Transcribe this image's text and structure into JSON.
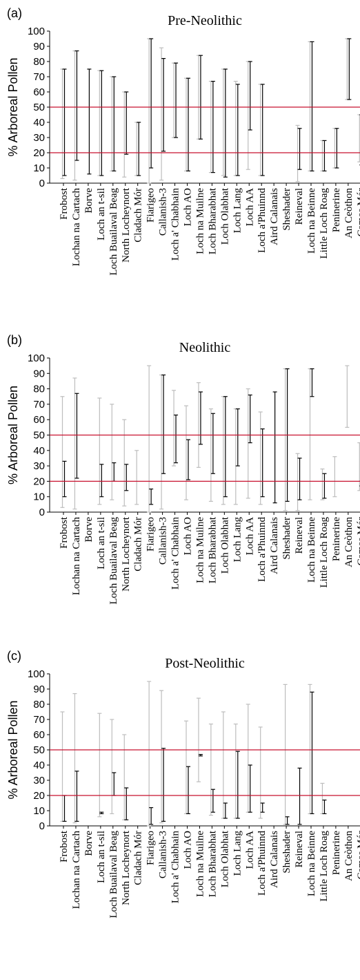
{
  "chart_data": [
    {
      "type": "range",
      "panel_label": "(a)",
      "title": "Pre-Neolithic",
      "ylabel": "% Arboreal Pollen",
      "ylim": [
        0,
        100
      ],
      "yticks": [
        0,
        10,
        20,
        30,
        40,
        50,
        60,
        70,
        80,
        90,
        100
      ],
      "reference_lines": [
        20,
        50
      ],
      "categories": [
        "Frobost",
        "Lochan na Cartach",
        "Borve",
        "Loch an t-sil",
        "Loch Buailaval Beag",
        "North Locheynort",
        "Cladach Mór",
        "Fiarigeo",
        "Callanish-3",
        "Loch a' Chabhain",
        "Loch AO",
        "Loch na Muilne",
        "Loch Bharabhat",
        "Loch Olabhat",
        "Loch Lang",
        "Loch AA",
        "Loch a'Phuinnd",
        "Aird Calanais",
        "Sheshader",
        "Reineval",
        "Loch na Beinne",
        "Little  Loch Roag",
        "Peninerine",
        "An Ceòthon",
        "Camas Mór"
      ],
      "series": [
        {
          "values": [
            [
              3,
              75
            ],
            [
              2,
              87
            ],
            null,
            [
              5,
              74
            ],
            [
              8,
              70
            ],
            [
              4,
              60
            ],
            [
              5,
              40
            ],
            [
              0,
              95
            ],
            [
              2,
              89
            ],
            [
              30,
              79
            ],
            [
              8,
              69
            ],
            [
              29,
              84
            ],
            [
              7,
              67
            ],
            [
              5,
              75
            ],
            [
              5,
              67
            ],
            [
              9,
              80
            ],
            [
              5,
              65
            ],
            null,
            null,
            [
              1,
              38
            ],
            [
              8,
              93
            ],
            [
              8,
              28
            ],
            [
              10,
              36
            ],
            [
              55,
              95
            ],
            [
              14,
              45
            ]
          ],
          "style": "context"
        },
        {
          "values": [
            [
              5,
              75
            ],
            [
              15,
              87
            ],
            [
              6,
              75
            ],
            [
              5,
              74
            ],
            [
              8,
              70
            ],
            [
              19,
              60
            ],
            [
              5,
              40
            ],
            [
              10,
              95
            ],
            [
              21,
              82
            ],
            [
              30,
              79
            ],
            [
              8,
              69
            ],
            [
              29,
              84
            ],
            [
              7,
              67
            ],
            [
              4,
              75
            ],
            [
              5,
              65
            ],
            [
              35,
              80
            ],
            [
              5,
              65
            ],
            null,
            null,
            [
              9,
              36
            ],
            [
              8,
              93
            ],
            [
              8,
              28
            ],
            [
              10,
              36
            ],
            [
              55,
              95
            ],
            [
              12,
              45
            ]
          ],
          "style": "period"
        }
      ]
    },
    {
      "type": "range",
      "panel_label": "(b)",
      "title": "Neolithic",
      "ylabel": "% Arboreal Pollen",
      "ylim": [
        0,
        100
      ],
      "yticks": [
        0,
        10,
        20,
        30,
        40,
        50,
        60,
        70,
        80,
        90,
        100
      ],
      "reference_lines": [
        20,
        50
      ],
      "categories": [
        "Frobost",
        "Lochan na Cartach",
        "Borve",
        "Loch an t-sil",
        "Loch Buailaval Beag",
        "North Locheynort",
        "Cladach Mór",
        "Fiarigeo",
        "Callanish-3",
        "Loch a' Chabhain",
        "Loch AO",
        "Loch na Muilne",
        "Loch Bharabhat",
        "Loch Olabhat",
        "Loch Lang",
        "Loch AA",
        "Loch a'Phuinnd",
        "Aird Calanais",
        "Sheshader",
        "Reineval",
        "Loch na Beinne",
        "Little  Loch Roag",
        "Peninerine",
        "An Ceòthon",
        "Camas Mór"
      ],
      "series": [
        {
          "values": [
            [
              3,
              75
            ],
            [
              2,
              87
            ],
            null,
            [
              5,
              74
            ],
            [
              8,
              70
            ],
            [
              4,
              60
            ],
            [
              5,
              40
            ],
            [
              0,
              95
            ],
            [
              2,
              89
            ],
            [
              30,
              79
            ],
            [
              8,
              69
            ],
            [
              29,
              84
            ],
            [
              7,
              67
            ],
            [
              5,
              75
            ],
            [
              5,
              67
            ],
            [
              9,
              80
            ],
            [
              5,
              65
            ],
            null,
            [
              1,
              93
            ],
            [
              1,
              38
            ],
            [
              8,
              93
            ],
            [
              8,
              28
            ],
            [
              10,
              36
            ],
            [
              55,
              95
            ],
            [
              14,
              45
            ]
          ],
          "style": "context"
        },
        {
          "values": [
            [
              10,
              33
            ],
            [
              22,
              77
            ],
            null,
            [
              10,
              31
            ],
            [
              20,
              32
            ],
            [
              14,
              31
            ],
            null,
            [
              5,
              15
            ],
            [
              25,
              89
            ],
            [
              32,
              63
            ],
            [
              21,
              47
            ],
            [
              44,
              78
            ],
            [
              25,
              64
            ],
            [
              10,
              75
            ],
            [
              30,
              67
            ],
            [
              45,
              76
            ],
            [
              10,
              54
            ],
            [
              6,
              78
            ],
            [
              7,
              93
            ],
            [
              8,
              35
            ],
            [
              75,
              93
            ],
            [
              9,
              25
            ],
            null,
            null,
            [
              17,
              20
            ]
          ],
          "style": "period"
        }
      ]
    },
    {
      "type": "range",
      "panel_label": "(c)",
      "title": "Post-Neolithic",
      "ylabel": "% Arboreal Pollen",
      "ylim": [
        0,
        100
      ],
      "yticks": [
        0,
        10,
        20,
        30,
        40,
        50,
        60,
        70,
        80,
        90,
        100
      ],
      "reference_lines": [
        20,
        50
      ],
      "categories": [
        "Frobost",
        "Lochan na Cartach",
        "Borve",
        "Loch an t-sil",
        "Loch Buailaval Beag",
        "North Locheynort",
        "Cladach Mór",
        "Fiarigeo",
        "Callanish-3",
        "Loch a' Chabhain",
        "Loch AO",
        "Loch na Muilne",
        "Loch Bharabhat",
        "Loch Olabhat",
        "Loch Lang",
        "Loch AA",
        "Loch a'Phuinnd",
        "Aird Calanais",
        "Sheshader",
        "Reineval",
        "Loch na Beinne",
        "Little  Loch Roag",
        "Peninerine",
        "An Ceòthon",
        "Camas Mór"
      ],
      "series": [
        {
          "values": [
            [
              3,
              75
            ],
            [
              2,
              87
            ],
            null,
            [
              6,
              74
            ],
            [
              8,
              70
            ],
            [
              4,
              60
            ],
            null,
            [
              0,
              95
            ],
            [
              2,
              89
            ],
            null,
            [
              8,
              69
            ],
            [
              29,
              84
            ],
            [
              7,
              67
            ],
            [
              5,
              75
            ],
            [
              5,
              67
            ],
            [
              9,
              80
            ],
            [
              5,
              65
            ],
            null,
            [
              1,
              93
            ],
            null,
            [
              8,
              93
            ],
            [
              8,
              28
            ],
            null,
            null,
            null
          ],
          "style": "context"
        },
        {
          "values": [
            [
              3,
              20
            ],
            [
              3,
              36
            ],
            null,
            [
              8,
              9
            ],
            [
              20,
              35
            ],
            [
              4,
              25
            ],
            null,
            [
              1,
              12
            ],
            [
              3,
              51
            ],
            null,
            [
              8,
              39
            ],
            [
              46,
              47
            ],
            [
              9,
              24
            ],
            [
              5,
              15
            ],
            [
              5,
              49
            ],
            [
              9,
              40
            ],
            [
              9,
              15
            ],
            null,
            [
              1,
              6
            ],
            [
              1,
              38
            ],
            [
              8,
              88
            ],
            [
              8,
              17
            ],
            null,
            null,
            null
          ],
          "style": "period"
        }
      ]
    }
  ],
  "colors": {
    "reference_line": "#c8102e",
    "period_range": "#000000",
    "context_range": "#bdbdbd",
    "axis": "#000000"
  }
}
